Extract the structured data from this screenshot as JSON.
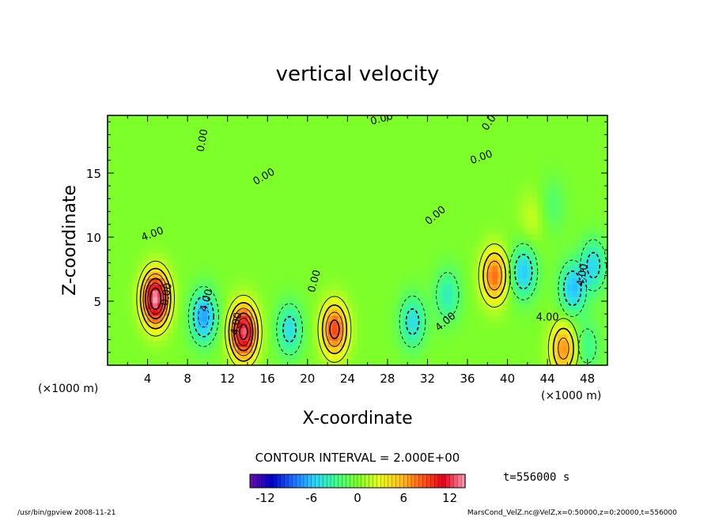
{
  "chart_data": {
    "type": "heatmap",
    "title": "vertical velocity",
    "xlabel": "X-coordinate",
    "ylabel": "Z-coordinate",
    "x_unit_left": "(×1000 m)",
    "x_unit_right": "(×1000 m)",
    "xlim": [
      0,
      50
    ],
    "ylim": [
      0,
      19.5
    ],
    "x_ticks": [
      4,
      8,
      12,
      16,
      20,
      24,
      28,
      32,
      36,
      40,
      44,
      48
    ],
    "y_ticks": [
      5,
      10,
      15
    ],
    "colorbar": {
      "range": [
        -14,
        14
      ],
      "ticks": [
        -12,
        -6,
        0,
        6,
        12
      ],
      "colors": [
        "#6a0dad",
        "#0000c8",
        "#1e6bff",
        "#2ad6ff",
        "#3dff8a",
        "#7dff2a",
        "#e8ff1a",
        "#ffc21a",
        "#ff5a1a",
        "#e8001a",
        "#ffa0b4"
      ]
    },
    "contour_interval_text": "CONTOUR INTERVAL = 2.000E+00",
    "time_text": "t=556000 s",
    "background_value": 0,
    "features": [
      {
        "x": 4.8,
        "z": 5.2,
        "value": 14
      },
      {
        "x": 9.6,
        "z": 3.8,
        "value": -7
      },
      {
        "x": 13.6,
        "z": 2.6,
        "value": 13
      },
      {
        "x": 18.2,
        "z": 2.8,
        "value": -5
      },
      {
        "x": 22.7,
        "z": 2.8,
        "value": 9
      },
      {
        "x": 30.5,
        "z": 3.4,
        "value": -5
      },
      {
        "x": 34.0,
        "z": 5.5,
        "value": -4
      },
      {
        "x": 38.7,
        "z": 7.0,
        "value": 8
      },
      {
        "x": 41.6,
        "z": 7.3,
        "value": -6
      },
      {
        "x": 46.5,
        "z": 6.0,
        "value": -6
      },
      {
        "x": 45.6,
        "z": 1.3,
        "value": 7
      },
      {
        "x": 48.6,
        "z": 7.8,
        "value": -5
      },
      {
        "x": 48.0,
        "z": 1.5,
        "value": -3
      },
      {
        "x": 42.5,
        "z": 11.5,
        "value": 2
      },
      {
        "x": 44.5,
        "z": 12.5,
        "value": -2
      }
    ],
    "contour_labels": [
      "4.00",
      "0.00",
      "4.00",
      "0.00",
      "0.00",
      "0.00",
      "0.00",
      "0.00",
      "4.00",
      "4.00",
      "0.00",
      "4.00",
      "0.00",
      "4.00"
    ]
  },
  "footer": {
    "left": "/usr/bin/gpview  2008-11-21",
    "right": "MarsCond_VelZ.nc@VelZ,x=0:50000,z=0:20000,t=556000"
  }
}
